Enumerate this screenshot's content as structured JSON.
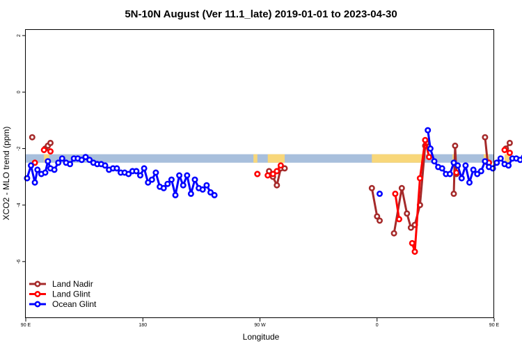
{
  "chart_data": {
    "type": "line",
    "title": "5N-10N August (Ver 11.1_late)   2019-01-01 to 2023-04-30",
    "xlabel": "Longitude",
    "ylabel": "XCO2 - MLO trend (ppm)",
    "xlim": [
      90,
      450
    ],
    "ylim": [
      -8,
      2.2
    ],
    "x_ticks": [
      {
        "value": 90,
        "label": "90 E"
      },
      {
        "value": 180,
        "label": "180"
      },
      {
        "value": 270,
        "label": "90 W"
      },
      {
        "value": 360,
        "label": "0"
      },
      {
        "value": 450,
        "label": "90 E"
      },
      {
        "value": 540,
        "label": "180"
      }
    ],
    "y_ticks": [
      {
        "value": 2,
        "label": "2"
      },
      {
        "value": 0,
        "label": "0"
      },
      {
        "value": -2,
        "label": "-2"
      },
      {
        "value": -4,
        "label": "-4"
      },
      {
        "value": -6,
        "label": "-6"
      }
    ],
    "grid": false,
    "legend_position": "bottom-left",
    "reference_band": {
      "ymin": -2.5,
      "ymax": -2.2,
      "ocean_color": "#a8bfdc",
      "land_color": "#f8d77a"
    },
    "series": [
      {
        "name": "Land Nadir",
        "color": "#a52a2a",
        "segments": [
          [
            [
              95,
              -1.6
            ]
          ],
          [
            [
              105,
              -2.0
            ],
            [
              107,
              -1.9
            ],
            [
              109,
              -1.8
            ]
          ],
          [
            [
              268,
              -2.9
            ]
          ],
          [
            [
              277,
              -2.8
            ],
            [
              280,
              -3.0
            ],
            [
              283,
              -3.3
            ],
            [
              286,
              -2.7
            ],
            [
              289,
              -2.7
            ]
          ],
          [
            [
              356,
              -3.4
            ],
            [
              360,
              -4.4
            ],
            [
              362,
              -4.55
            ]
          ],
          [
            [
              373,
              -5.0
            ],
            [
              379,
              -3.4
            ],
            [
              383,
              -4.3
            ],
            [
              386,
              -4.8
            ],
            [
              389,
              -4.7
            ],
            [
              393,
              -4.0
            ],
            [
              397,
              -1.9
            ],
            [
              398,
              -1.8
            ]
          ],
          [
            [
              419,
              -3.6
            ],
            [
              420,
              -1.9
            ],
            [
              421,
              -2.9
            ]
          ],
          [
            [
              443,
              -1.6
            ],
            [
              445,
              -2.5
            ]
          ],
          [
            [
              459,
              -2.0
            ],
            [
              462,
              -1.8
            ]
          ]
        ]
      },
      {
        "name": "Land Glint",
        "color": "#ff0000",
        "segments": [
          [
            [
              97,
              -2.5
            ]
          ],
          [
            [
              104,
              -2.05
            ]
          ],
          [
            [
              109,
              -2.1
            ]
          ],
          [
            [
              268,
              -2.9
            ]
          ],
          [
            [
              276,
              -2.95
            ],
            [
              280,
              -2.9
            ],
            [
              283,
              -2.8
            ],
            [
              286,
              -2.6
            ]
          ],
          [
            [
              374,
              -3.6
            ],
            [
              377,
              -4.5
            ]
          ],
          [
            [
              387,
              -5.35
            ],
            [
              389,
              -5.65
            ],
            [
              393,
              -3.05
            ],
            [
              397,
              -1.7
            ],
            [
              400,
              -2.3
            ]
          ],
          [
            [
              421,
              -2.85
            ]
          ],
          [
            [
              446,
              -2.5
            ]
          ],
          [
            [
              458,
              -2.05
            ],
            [
              462,
              -2.15
            ]
          ]
        ]
      },
      {
        "name": "Ocean Glint",
        "color": "#0000ff",
        "segments": [
          [
            [
              91,
              -3.05
            ],
            [
              94,
              -2.6
            ],
            [
              97,
              -3.2
            ],
            [
              99,
              -2.75
            ],
            [
              102,
              -2.9
            ],
            [
              105,
              -2.85
            ],
            [
              107,
              -2.45
            ],
            [
              109,
              -2.7
            ],
            [
              112,
              -2.75
            ],
            [
              115,
              -2.5
            ],
            [
              118,
              -2.35
            ],
            [
              121,
              -2.5
            ],
            [
              124,
              -2.55
            ],
            [
              127,
              -2.35
            ],
            [
              130,
              -2.35
            ],
            [
              133,
              -2.4
            ],
            [
              136,
              -2.3
            ],
            [
              139,
              -2.4
            ],
            [
              142,
              -2.5
            ],
            [
              145,
              -2.55
            ],
            [
              148,
              -2.55
            ],
            [
              151,
              -2.6
            ],
            [
              154,
              -2.75
            ],
            [
              157,
              -2.7
            ],
            [
              160,
              -2.7
            ],
            [
              163,
              -2.85
            ],
            [
              166,
              -2.85
            ],
            [
              169,
              -2.9
            ],
            [
              172,
              -2.8
            ],
            [
              175,
              -2.8
            ],
            [
              178,
              -2.95
            ],
            [
              181,
              -2.7
            ],
            [
              184,
              -3.2
            ],
            [
              187,
              -3.1
            ],
            [
              190,
              -2.85
            ],
            [
              193,
              -3.35
            ],
            [
              196,
              -3.4
            ],
            [
              199,
              -3.25
            ],
            [
              202,
              -3.1
            ],
            [
              205,
              -3.65
            ],
            [
              208,
              -2.95
            ],
            [
              211,
              -3.3
            ],
            [
              214,
              -2.95
            ],
            [
              217,
              -3.6
            ],
            [
              220,
              -3.1
            ],
            [
              223,
              -3.4
            ],
            [
              226,
              -3.45
            ],
            [
              229,
              -3.3
            ],
            [
              232,
              -3.55
            ],
            [
              235,
              -3.65
            ]
          ],
          [
            [
              362,
              -3.6
            ]
          ],
          [
            [
              399,
              -1.35
            ],
            [
              401,
              -2.0
            ],
            [
              404,
              -2.45
            ],
            [
              407,
              -2.65
            ],
            [
              410,
              -2.7
            ],
            [
              413,
              -2.9
            ],
            [
              416,
              -2.9
            ],
            [
              419,
              -2.5
            ],
            [
              422,
              -2.6
            ],
            [
              425,
              -3.05
            ],
            [
              428,
              -2.6
            ],
            [
              431,
              -3.2
            ],
            [
              434,
              -2.75
            ],
            [
              437,
              -2.9
            ],
            [
              440,
              -2.8
            ],
            [
              443,
              -2.45
            ],
            [
              446,
              -2.65
            ],
            [
              449,
              -2.7
            ],
            [
              452,
              -2.5
            ],
            [
              455,
              -2.35
            ],
            [
              458,
              -2.55
            ],
            [
              461,
              -2.6
            ],
            [
              464,
              -2.35
            ],
            [
              467,
              -2.35
            ],
            [
              470,
              -2.4
            ],
            [
              473,
              -2.3
            ],
            [
              476,
              -2.45
            ],
            [
              479,
              -2.5
            ]
          ]
        ]
      }
    ]
  }
}
